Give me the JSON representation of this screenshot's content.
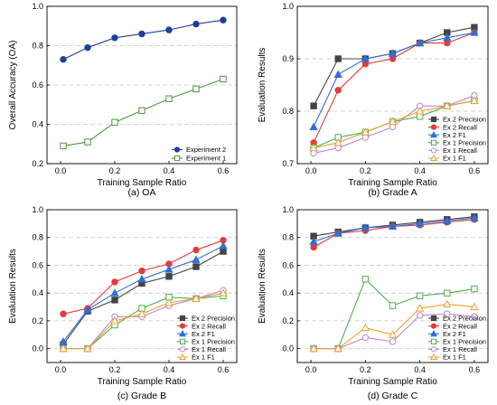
{
  "chart_data": [
    {
      "type": "line",
      "caption": "(a)  OA",
      "xlabel": "Training Sample Ratio",
      "ylabel": "Overall Accuracy (OA)",
      "xlim": [
        -0.05,
        0.65
      ],
      "ylim": [
        0.2,
        1.0
      ],
      "xticks": [
        "0.0",
        "0.2",
        "0.4",
        "0.6"
      ],
      "yticks": [
        "0.2",
        "0.4",
        "0.6",
        "0.8",
        "1.0"
      ],
      "grid": "horizontal dashed",
      "legend_position": "bottom-right",
      "x": [
        0.01,
        0.1,
        0.2,
        0.3,
        0.4,
        0.5,
        0.6
      ],
      "series": [
        {
          "name": "Experiment 2",
          "values": [
            0.73,
            0.79,
            0.84,
            0.86,
            0.88,
            0.91,
            0.93
          ],
          "color": "#1f3f9e",
          "marker": "circle-filled"
        },
        {
          "name": "Experiment 1",
          "values": [
            0.29,
            0.31,
            0.41,
            0.47,
            0.53,
            0.58,
            0.63
          ],
          "color": "#4a9a3a",
          "marker": "square-open"
        }
      ]
    },
    {
      "type": "line",
      "caption": "(b) Grade A",
      "xlabel": "Training Sample Ratio",
      "ylabel": "Evaluation Results",
      "xlim": [
        -0.05,
        0.65
      ],
      "ylim": [
        0.7,
        1.0
      ],
      "xticks": [
        "0.0",
        "0.2",
        "0.4",
        "0.6"
      ],
      "yticks": [
        "0.7",
        "0.8",
        "0.9",
        "1.0"
      ],
      "grid": "horizontal dashed",
      "legend_position": "bottom-right",
      "x": [
        0.01,
        0.1,
        0.2,
        0.3,
        0.4,
        0.5,
        0.6
      ],
      "series": [
        {
          "name": "Ex 2 Precision",
          "values": [
            0.81,
            0.9,
            0.9,
            0.91,
            0.93,
            0.95,
            0.96
          ],
          "color": "#444444",
          "marker": "square-filled"
        },
        {
          "name": "Ex 2 Recall",
          "values": [
            0.74,
            0.84,
            0.89,
            0.9,
            0.93,
            0.93,
            0.95
          ],
          "color": "#e33b3b",
          "marker": "circle-filled"
        },
        {
          "name": "Ex 2 F1",
          "values": [
            0.77,
            0.87,
            0.9,
            0.91,
            0.93,
            0.94,
            0.95
          ],
          "color": "#2f6fd6",
          "marker": "triangle-filled"
        },
        {
          "name": "Ex 1 Precision",
          "values": [
            0.73,
            0.75,
            0.76,
            0.78,
            0.79,
            0.81,
            0.82
          ],
          "color": "#4caf50",
          "marker": "square-open"
        },
        {
          "name": "Ex 1 Recall",
          "values": [
            0.72,
            0.73,
            0.75,
            0.77,
            0.81,
            0.81,
            0.83
          ],
          "color": "#b58ad8",
          "marker": "circle-open"
        },
        {
          "name": "Ex 1 F1",
          "values": [
            0.73,
            0.74,
            0.76,
            0.78,
            0.8,
            0.81,
            0.82
          ],
          "color": "#f0a030",
          "marker": "triangle-open"
        }
      ]
    },
    {
      "type": "line",
      "caption": "(c) Grade B",
      "xlabel": "Training Sample Ratio",
      "ylabel": "Evaluation Results",
      "xlim": [
        -0.05,
        0.65
      ],
      "ylim": [
        -0.1,
        1.0
      ],
      "xticks": [
        "0.0",
        "0.2",
        "0.4",
        "0.6"
      ],
      "yticks": [
        "0.0",
        "0.2",
        "0.4",
        "0.6",
        "0.8",
        "1.0"
      ],
      "grid": "horizontal dashed",
      "legend_position": "bottom-right",
      "x": [
        0.01,
        0.1,
        0.2,
        0.3,
        0.4,
        0.5,
        0.6
      ],
      "series": [
        {
          "name": "Ex 2 Precision",
          "values": [
            0.03,
            0.27,
            0.35,
            0.47,
            0.52,
            0.59,
            0.7
          ],
          "color": "#444444",
          "marker": "square-filled"
        },
        {
          "name": "Ex 2 Recall",
          "values": [
            0.25,
            0.29,
            0.48,
            0.56,
            0.61,
            0.71,
            0.78
          ],
          "color": "#e33b3b",
          "marker": "circle-filled"
        },
        {
          "name": "Ex 2 F1",
          "values": [
            0.05,
            0.28,
            0.4,
            0.5,
            0.57,
            0.64,
            0.74
          ],
          "color": "#2f6fd6",
          "marker": "triangle-filled"
        },
        {
          "name": "Ex 1 Precision",
          "values": [
            0.0,
            0.0,
            0.17,
            0.29,
            0.37,
            0.36,
            0.38
          ],
          "color": "#4caf50",
          "marker": "square-open"
        },
        {
          "name": "Ex 1 Recall",
          "values": [
            0.0,
            0.0,
            0.23,
            0.23,
            0.31,
            0.36,
            0.42
          ],
          "color": "#b58ad8",
          "marker": "circle-open"
        },
        {
          "name": "Ex 1 F1",
          "values": [
            0.0,
            0.0,
            0.2,
            0.25,
            0.33,
            0.36,
            0.4
          ],
          "color": "#f0a030",
          "marker": "triangle-open"
        }
      ]
    },
    {
      "type": "line",
      "caption": "(d) Grade C",
      "xlabel": "Training Sample Ratio",
      "ylabel": "Evaluation Results",
      "xlim": [
        -0.05,
        0.65
      ],
      "ylim": [
        -0.1,
        1.0
      ],
      "xticks": [
        "0.0",
        "0.2",
        "0.4",
        "0.6"
      ],
      "yticks": [
        "0.0",
        "0.2",
        "0.4",
        "0.6",
        "0.8",
        "1.0"
      ],
      "grid": "horizontal dashed",
      "legend_position": "bottom-right",
      "x": [
        0.01,
        0.1,
        0.2,
        0.3,
        0.4,
        0.5,
        0.6
      ],
      "series": [
        {
          "name": "Ex 2 Precision",
          "values": [
            0.81,
            0.84,
            0.87,
            0.89,
            0.91,
            0.93,
            0.95
          ],
          "color": "#444444",
          "marker": "square-filled"
        },
        {
          "name": "Ex 2 Recall",
          "values": [
            0.73,
            0.83,
            0.85,
            0.88,
            0.89,
            0.91,
            0.93
          ],
          "color": "#e33b3b",
          "marker": "circle-filled"
        },
        {
          "name": "Ex 2 F1",
          "values": [
            0.77,
            0.83,
            0.87,
            0.88,
            0.9,
            0.92,
            0.94
          ],
          "color": "#2f6fd6",
          "marker": "triangle-filled"
        },
        {
          "name": "Ex 1 Precision",
          "values": [
            0.0,
            0.0,
            0.5,
            0.31,
            0.38,
            0.4,
            0.43
          ],
          "color": "#4caf50",
          "marker": "square-open"
        },
        {
          "name": "Ex 1 Recall",
          "values": [
            0.0,
            0.0,
            0.08,
            0.05,
            0.24,
            0.25,
            0.23
          ],
          "color": "#b58ad8",
          "marker": "circle-open"
        },
        {
          "name": "Ex 1 F1",
          "values": [
            0.0,
            0.0,
            0.15,
            0.1,
            0.29,
            0.32,
            0.3
          ],
          "color": "#f0a030",
          "marker": "triangle-open"
        }
      ]
    }
  ]
}
